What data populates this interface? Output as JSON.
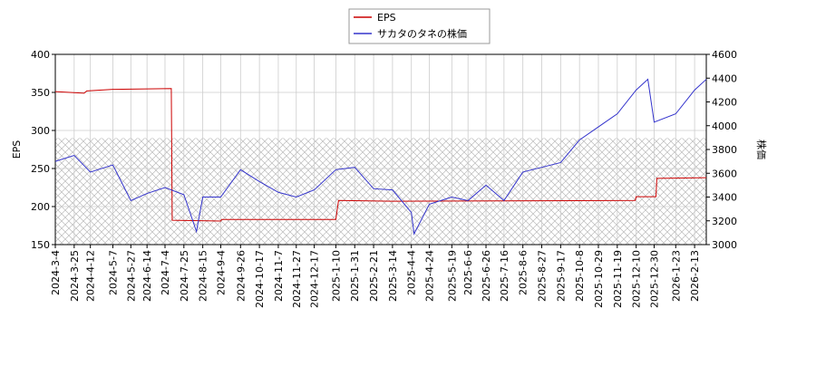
{
  "chart_data": {
    "type": "line",
    "ylabel": "EPS",
    "y2label": "株価",
    "xlim": [
      "2024-3-4",
      "2026-2-26"
    ],
    "ylim": [
      150,
      400
    ],
    "yticks": [
      150,
      200,
      250,
      300,
      350,
      400
    ],
    "y2lim": [
      3000,
      4600
    ],
    "y2ticks": [
      3000,
      3200,
      3400,
      3600,
      3800,
      4000,
      4200,
      4400,
      4600
    ],
    "xticks": [
      "2024-3-4",
      "2024-3-25",
      "2024-4-12",
      "2024-5-7",
      "2024-5-27",
      "2024-6-14",
      "2024-7-4",
      "2024-7-25",
      "2024-8-15",
      "2024-9-4",
      "2024-9-26",
      "2024-10-17",
      "2024-11-7",
      "2024-11-27",
      "2024-12-17",
      "2025-1-10",
      "2025-1-31",
      "2025-2-21",
      "2025-3-14",
      "2025-4-4",
      "2025-4-24",
      "2025-5-19",
      "2025-6-6",
      "2025-6-26",
      "2025-7-16",
      "2025-8-6",
      "2025-8-27",
      "2025-9-17",
      "2025-10-8",
      "2025-10-29",
      "2025-11-19",
      "2025-12-10",
      "2025-12-30",
      "2026-1-23",
      "2026-2-13"
    ],
    "grid": true,
    "hatch_range": [
      150,
      290
    ],
    "legend": "upper center",
    "series": [
      {
        "name": "EPS",
        "color": "#cc0000",
        "x": [
          "2024-3-4",
          "2024-4-5",
          "2024-4-8",
          "2024-5-7",
          "2024-7-11",
          "2024-7-12",
          "2024-9-4",
          "2024-9-5",
          "2025-1-10",
          "2025-1-13",
          "2025-3-14",
          "2025-12-9",
          "2025-12-10",
          "2026-1-1",
          "2026-1-2",
          "2026-2-26"
        ],
        "values": [
          351,
          349,
          352,
          354,
          355,
          182,
          181,
          183,
          183,
          208,
          207,
          208,
          213,
          213,
          237,
          238
        ]
      },
      {
        "name": "サカタのタネの株価",
        "color": "#3333cc",
        "axis": "y2",
        "x": [
          "2024-3-4",
          "2024-3-25",
          "2024-4-12",
          "2024-5-7",
          "2024-5-27",
          "2024-6-14",
          "2024-7-4",
          "2024-7-25",
          "2024-8-8",
          "2024-8-15",
          "2024-9-4",
          "2024-9-26",
          "2024-10-17",
          "2024-11-7",
          "2024-11-27",
          "2024-12-17",
          "2025-1-10",
          "2025-1-31",
          "2025-2-21",
          "2025-3-14",
          "2025-4-4",
          "2025-4-7",
          "2025-4-24",
          "2025-5-19",
          "2025-6-6",
          "2025-6-26",
          "2025-7-16",
          "2025-8-6",
          "2025-8-27",
          "2025-9-17",
          "2025-10-8",
          "2025-10-29",
          "2025-11-19",
          "2025-12-10",
          "2025-12-23",
          "2025-12-30",
          "2026-1-23",
          "2026-2-13",
          "2026-2-26"
        ],
        "values": [
          3700,
          3750,
          3610,
          3670,
          3370,
          3430,
          3480,
          3420,
          3110,
          3400,
          3400,
          3630,
          3530,
          3440,
          3400,
          3460,
          3630,
          3650,
          3470,
          3460,
          3270,
          3090,
          3340,
          3400,
          3370,
          3500,
          3370,
          3610,
          3650,
          3690,
          3880,
          3990,
          4100,
          4300,
          4390,
          4030,
          4100,
          4300,
          4390
        ]
      }
    ]
  }
}
